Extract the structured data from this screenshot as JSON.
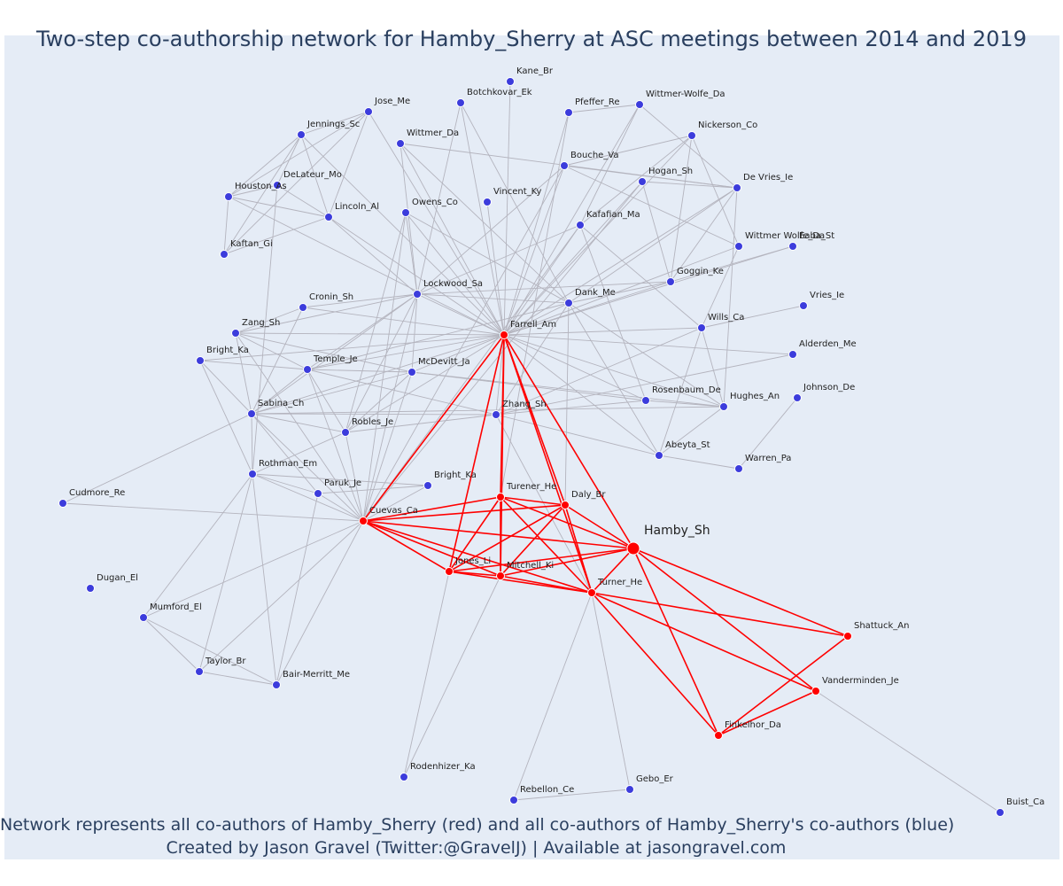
{
  "title": "Two-step co-authorship network for Hamby_Sherry at ASC meetings between 2014 and 2019",
  "caption": {
    "line1": "Network represents all co-authors of Hamby_Sherry (red) and all co-authors of Hamby_Sherry's co-authors (blue)",
    "line2": "Created by Jason Gravel (Twitter:@GravelJ) | Available at jasongravel.com"
  },
  "colors": {
    "first_degree": "#ff0000",
    "second_degree": "#3c3cdc",
    "edge_gray": "#b4b4be",
    "background": "#e5ecf6",
    "text": "#2a3f5f"
  },
  "nodes": [
    {
      "id": "Hamby_Sh",
      "label": "Hamby_Sh",
      "group": "ego"
    },
    {
      "id": "Farrell_Am",
      "label": "Farrell_Am",
      "group": "red"
    },
    {
      "id": "Cuevas_Ca",
      "label": "Cuevas_Ca",
      "group": "red"
    },
    {
      "id": "Turener_He",
      "label": "Turener_He",
      "group": "red"
    },
    {
      "id": "Daly_Br",
      "label": "Daly_Br",
      "group": "red"
    },
    {
      "id": "Jones_Li",
      "label": "Jones_Li",
      "group": "red"
    },
    {
      "id": "Mitchell_Ki",
      "label": "Mitchell_Ki",
      "group": "red"
    },
    {
      "id": "Turner_He",
      "label": "Turner_He",
      "group": "red"
    },
    {
      "id": "Shattuck_An",
      "label": "Shattuck_An",
      "group": "red"
    },
    {
      "id": "Vanderminden_Je",
      "label": "Vanderminden_Je",
      "group": "red"
    },
    {
      "id": "Finkelhor_Da",
      "label": "Finkelhor_Da",
      "group": "red"
    },
    {
      "id": "Kane_Br",
      "label": "Kane_Br",
      "group": "blue"
    },
    {
      "id": "Botchkovar_Ek",
      "label": "Botchkovar_Ek",
      "group": "blue"
    },
    {
      "id": "Pfeffer_Re",
      "label": "Pfeffer_Re",
      "group": "blue"
    },
    {
      "id": "Wittmer-Wolfe_Da",
      "label": "Wittmer-Wolfe_Da",
      "group": "blue"
    },
    {
      "id": "Jose_Me",
      "label": "Jose_Me",
      "group": "blue"
    },
    {
      "id": "Jennings_Sc",
      "label": "Jennings_Sc",
      "group": "blue"
    },
    {
      "id": "Wittmer_Da",
      "label": "Wittmer_Da",
      "group": "blue"
    },
    {
      "id": "Nickerson_Co",
      "label": "Nickerson_Co",
      "group": "blue"
    },
    {
      "id": "Bouche_Va",
      "label": "Bouche_Va",
      "group": "blue"
    },
    {
      "id": "DeLateur_Mo",
      "label": "DeLateur_Mo",
      "group": "blue"
    },
    {
      "id": "Hogan_Sh",
      "label": "Hogan_Sh",
      "group": "blue"
    },
    {
      "id": "Houston_As",
      "label": "Houston_As",
      "group": "blue"
    },
    {
      "id": "De Vries_Ie",
      "label": "De Vries_Ie",
      "group": "blue"
    },
    {
      "id": "Vincent_Ky",
      "label": "Vincent_Ky",
      "group": "blue"
    },
    {
      "id": "Owens_Co",
      "label": "Owens_Co",
      "group": "blue"
    },
    {
      "id": "Lincoln_Al",
      "label": "Lincoln_Al",
      "group": "blue"
    },
    {
      "id": "Kafafian_Ma",
      "label": "Kafafian_Ma",
      "group": "blue"
    },
    {
      "id": "Kaftan_Gi",
      "label": "Kaftan_Gi",
      "group": "blue"
    },
    {
      "id": "Wittmer Wolfe_Da",
      "label": "Wittmer Wolfe_Da",
      "group": "blue"
    },
    {
      "id": "Eaba_St",
      "label": "Eaba_St",
      "group": "blue"
    },
    {
      "id": "Goggin_Ke",
      "label": "Goggin_Ke",
      "group": "blue"
    },
    {
      "id": "Lockwood_Sa",
      "label": "Lockwood_Sa",
      "group": "blue"
    },
    {
      "id": "Cronin_Sh",
      "label": "Cronin_Sh",
      "group": "blue"
    },
    {
      "id": "Dank_Me",
      "label": "Dank_Me",
      "group": "blue"
    },
    {
      "id": "Vries_Ie",
      "label": "Vries_Ie",
      "group": "blue"
    },
    {
      "id": "Zang_Sh",
      "label": "Zang_Sh",
      "group": "blue"
    },
    {
      "id": "Wills_Ca",
      "label": "Wills_Ca",
      "group": "blue"
    },
    {
      "id": "Bright_Ka_top",
      "label": "Bright_Ka",
      "group": "blue"
    },
    {
      "id": "Alderden_Me",
      "label": "Alderden_Me",
      "group": "blue"
    },
    {
      "id": "Temple_Je",
      "label": "Temple_Je",
      "group": "blue"
    },
    {
      "id": "McDevitt_Ja",
      "label": "McDevitt_Ja",
      "group": "blue"
    },
    {
      "id": "Rosenbaum_De",
      "label": "Rosenbaum_De",
      "group": "blue"
    },
    {
      "id": "Johnson_De",
      "label": "Johnson_De",
      "group": "blue"
    },
    {
      "id": "Hughes_An",
      "label": "Hughes_An",
      "group": "blue"
    },
    {
      "id": "Sabina_Ch",
      "label": "Sabina_Ch",
      "group": "blue"
    },
    {
      "id": "Zhang_Sh",
      "label": "Zhang_Sh",
      "group": "blue"
    },
    {
      "id": "Robles_Je",
      "label": "Robles_Je",
      "group": "blue"
    },
    {
      "id": "Abeyta_St",
      "label": "Abeyta_St",
      "group": "blue"
    },
    {
      "id": "Warren_Pa",
      "label": "Warren_Pa",
      "group": "blue"
    },
    {
      "id": "Rothman_Em",
      "label": "Rothman_Em",
      "group": "blue"
    },
    {
      "id": "Bright_Ka_mid",
      "label": "Bright_Ka",
      "group": "blue"
    },
    {
      "id": "Paruk_Je",
      "label": "Paruk_Je",
      "group": "blue"
    },
    {
      "id": "Cudmore_Re",
      "label": "Cudmore_Re",
      "group": "blue"
    },
    {
      "id": "Dugan_El",
      "label": "Dugan_El",
      "group": "blue"
    },
    {
      "id": "Mumford_El",
      "label": "Mumford_El",
      "group": "blue"
    },
    {
      "id": "Taylor_Br",
      "label": "Taylor_Br",
      "group": "blue"
    },
    {
      "id": "Bair-Merritt_Me",
      "label": "Bair-Merritt_Me",
      "group": "blue"
    },
    {
      "id": "Rodenhizer_Ka",
      "label": "Rodenhizer_Ka",
      "group": "blue"
    },
    {
      "id": "Rebellon_Ce",
      "label": "Rebellon_Ce",
      "group": "blue"
    },
    {
      "id": "Gebo_Er",
      "label": "Gebo_Er",
      "group": "blue"
    },
    {
      "id": "Buist_Ca",
      "label": "Buist_Ca",
      "group": "blue"
    }
  ],
  "red_edges": [
    [
      "Hamby_Sh",
      "Farrell_Am"
    ],
    [
      "Hamby_Sh",
      "Cuevas_Ca"
    ],
    [
      "Hamby_Sh",
      "Turener_He"
    ],
    [
      "Hamby_Sh",
      "Daly_Br"
    ],
    [
      "Hamby_Sh",
      "Jones_Li"
    ],
    [
      "Hamby_Sh",
      "Mitchell_Ki"
    ],
    [
      "Hamby_Sh",
      "Turner_He"
    ],
    [
      "Hamby_Sh",
      "Shattuck_An"
    ],
    [
      "Hamby_Sh",
      "Vanderminden_Je"
    ],
    [
      "Hamby_Sh",
      "Finkelhor_Da"
    ],
    [
      "Farrell_Am",
      "Cuevas_Ca"
    ],
    [
      "Farrell_Am",
      "Turener_He"
    ],
    [
      "Farrell_Am",
      "Daly_Br"
    ],
    [
      "Farrell_Am",
      "Jones_Li"
    ],
    [
      "Farrell_Am",
      "Mitchell_Ki"
    ],
    [
      "Farrell_Am",
      "Turner_He"
    ],
    [
      "Cuevas_Ca",
      "Turener_He"
    ],
    [
      "Cuevas_Ca",
      "Daly_Br"
    ],
    [
      "Cuevas_Ca",
      "Jones_Li"
    ],
    [
      "Cuevas_Ca",
      "Mitchell_Ki"
    ],
    [
      "Cuevas_Ca",
      "Turner_He"
    ],
    [
      "Turener_He",
      "Daly_Br"
    ],
    [
      "Turener_He",
      "Jones_Li"
    ],
    [
      "Turener_He",
      "Mitchell_Ki"
    ],
    [
      "Turener_He",
      "Turner_He"
    ],
    [
      "Daly_Br",
      "Jones_Li"
    ],
    [
      "Daly_Br",
      "Mitchell_Ki"
    ],
    [
      "Daly_Br",
      "Turner_He"
    ],
    [
      "Jones_Li",
      "Mitchell_Ki"
    ],
    [
      "Jones_Li",
      "Turner_He"
    ],
    [
      "Mitchell_Ki",
      "Turner_He"
    ],
    [
      "Turner_He",
      "Shattuck_An"
    ],
    [
      "Turner_He",
      "Vanderminden_Je"
    ],
    [
      "Turner_He",
      "Finkelhor_Da"
    ],
    [
      "Shattuck_An",
      "Finkelhor_Da"
    ],
    [
      "Vanderminden_Je",
      "Finkelhor_Da"
    ]
  ],
  "gray_edges": [
    [
      "Farrell_Am",
      "Kane_Br"
    ],
    [
      "Farrell_Am",
      "Botchkovar_Ek"
    ],
    [
      "Farrell_Am",
      "Pfeffer_Re"
    ],
    [
      "Farrell_Am",
      "Wittmer-Wolfe_Da"
    ],
    [
      "Farrell_Am",
      "Jose_Me"
    ],
    [
      "Farrell_Am",
      "Wittmer_Da"
    ],
    [
      "Farrell_Am",
      "Nickerson_Co"
    ],
    [
      "Farrell_Am",
      "Bouche_Va"
    ],
    [
      "Farrell_Am",
      "Hogan_Sh"
    ],
    [
      "Farrell_Am",
      "De Vries_Ie"
    ],
    [
      "Farrell_Am",
      "Vincent_Ky"
    ],
    [
      "Farrell_Am",
      "Owens_Co"
    ],
    [
      "Farrell_Am",
      "Lincoln_Al"
    ],
    [
      "Farrell_Am",
      "Kafafian_Ma"
    ],
    [
      "Farrell_Am",
      "Wittmer Wolfe_Da"
    ],
    [
      "Farrell_Am",
      "Eaba_St"
    ],
    [
      "Farrell_Am",
      "Goggin_Ke"
    ],
    [
      "Farrell_Am",
      "Lockwood_Sa"
    ],
    [
      "Farrell_Am",
      "Cronin_Sh"
    ],
    [
      "Farrell_Am",
      "Dank_Me"
    ],
    [
      "Farrell_Am",
      "Zang_Sh"
    ],
    [
      "Farrell_Am",
      "Wills_Ca"
    ],
    [
      "Farrell_Am",
      "Bright_Ka_top"
    ],
    [
      "Farrell_Am",
      "Alderden_Me"
    ],
    [
      "Farrell_Am",
      "Temple_Je"
    ],
    [
      "Farrell_Am",
      "McDevitt_Ja"
    ],
    [
      "Farrell_Am",
      "Rosenbaum_De"
    ],
    [
      "Farrell_Am",
      "Hughes_An"
    ],
    [
      "Farrell_Am",
      "Sabina_Ch"
    ],
    [
      "Farrell_Am",
      "Zhang_Sh"
    ],
    [
      "Farrell_Am",
      "Robles_Je"
    ],
    [
      "Farrell_Am",
      "Abeyta_St"
    ],
    [
      "Farrell_Am",
      "Houston_As"
    ],
    [
      "Farrell_Am",
      "Jennings_Sc"
    ],
    [
      "Jennings_Sc",
      "Jose_Me"
    ],
    [
      "Jennings_Sc",
      "Houston_As"
    ],
    [
      "Jennings_Sc",
      "Kaftan_Gi"
    ],
    [
      "Jennings_Sc",
      "Lincoln_Al"
    ],
    [
      "Jennings_Sc",
      "DeLateur_Mo"
    ],
    [
      "Houston_As",
      "Kaftan_Gi"
    ],
    [
      "Houston_As",
      "Lincoln_Al"
    ],
    [
      "Houston_As",
      "Jose_Me"
    ],
    [
      "Kaftan_Gi",
      "Lincoln_Al"
    ],
    [
      "Kaftan_Gi",
      "Jose_Me"
    ],
    [
      "Jose_Me",
      "Lincoln_Al"
    ],
    [
      "DeLateur_Mo",
      "Lincoln_Al"
    ],
    [
      "DeLateur_Mo",
      "Houston_As"
    ],
    [
      "DeLateur_Mo",
      "Rothman_Em"
    ],
    [
      "Lincoln_Al",
      "Lockwood_Sa"
    ],
    [
      "Botchkovar_Ek",
      "Lockwood_Sa"
    ],
    [
      "Botchkovar_Ek",
      "Dank_Me"
    ],
    [
      "Wittmer_Da",
      "Lockwood_Sa"
    ],
    [
      "Wittmer_Da",
      "De Vries_Ie"
    ],
    [
      "Wittmer_Da",
      "Dank_Me"
    ],
    [
      "Owens_Co",
      "Lockwood_Sa"
    ],
    [
      "Owens_Co",
      "Cuevas_Ca"
    ],
    [
      "Owens_Co",
      "Robles_Je"
    ],
    [
      "Owens_Co",
      "Dank_Me"
    ],
    [
      "Bouche_Va",
      "Nickerson_Co"
    ],
    [
      "Bouche_Va",
      "De Vries_Ie"
    ],
    [
      "Bouche_Va",
      "Lockwood_Sa"
    ],
    [
      "Bouche_Va",
      "Cuevas_Ca"
    ],
    [
      "Bouche_Va",
      "Wittmer Wolfe_Da"
    ],
    [
      "Pfeffer_Re",
      "Wittmer-Wolfe_Da"
    ],
    [
      "Pfeffer_Re",
      "Turener_He"
    ],
    [
      "Nickerson_Co",
      "Wittmer Wolfe_Da"
    ],
    [
      "Nickerson_Co",
      "Goggin_Ke"
    ],
    [
      "Nickerson_Co",
      "Kafafian_Ma"
    ],
    [
      "Wittmer-Wolfe_Da",
      "De Vries_Ie"
    ],
    [
      "Wittmer-Wolfe_Da",
      "Kafafian_Ma"
    ],
    [
      "Hogan_Sh",
      "Goggin_Ke"
    ],
    [
      "Hogan_Sh",
      "Cuevas_Ca"
    ],
    [
      "Hogan_Sh",
      "De Vries_Ie"
    ],
    [
      "De Vries_Ie",
      "Goggin_Ke"
    ],
    [
      "De Vries_Ie",
      "Hughes_An"
    ],
    [
      "De Vries_Ie",
      "Dank_Me"
    ],
    [
      "Kafafian_Ma",
      "Lockwood_Sa"
    ],
    [
      "Kafafian_Ma",
      "Rosenbaum_De"
    ],
    [
      "Kafafian_Ma",
      "Wills_Ca"
    ],
    [
      "Kafafian_Ma",
      "Cuevas_Ca"
    ],
    [
      "Wittmer Wolfe_Da",
      "Wills_Ca"
    ],
    [
      "Goggin_Ke",
      "Dank_Me"
    ],
    [
      "Goggin_Ke",
      "Lockwood_Sa"
    ],
    [
      "Goggin_Ke",
      "Eaba_St"
    ],
    [
      "Dank_Me",
      "Lockwood_Sa"
    ],
    [
      "Dank_Me",
      "Hughes_An"
    ],
    [
      "Dank_Me",
      "Temple_Je"
    ],
    [
      "Dank_Me",
      "Zhang_Sh"
    ],
    [
      "Dank_Me",
      "Abeyta_St"
    ],
    [
      "Lockwood_Sa",
      "Cronin_Sh"
    ],
    [
      "Lockwood_Sa",
      "Zang_Sh"
    ],
    [
      "Lockwood_Sa",
      "Sabina_Ch"
    ],
    [
      "Lockwood_Sa",
      "Cuevas_Ca"
    ],
    [
      "Lockwood_Sa",
      "Robles_Je"
    ],
    [
      "Lockwood_Sa",
      "Temple_Je"
    ],
    [
      "Lockwood_Sa",
      "McDevitt_Ja"
    ],
    [
      "Cronin_Sh",
      "Zang_Sh"
    ],
    [
      "Cronin_Sh",
      "Sabina_Ch"
    ],
    [
      "Vries_Ie",
      "Wills_Ca"
    ],
    [
      "Wills_Ca",
      "Hughes_An"
    ],
    [
      "Wills_Ca",
      "Abeyta_St"
    ],
    [
      "Wills_Ca",
      "Zhang_Sh"
    ],
    [
      "Zang_Sh",
      "Temple_Je"
    ],
    [
      "Zang_Sh",
      "McDevitt_Ja"
    ],
    [
      "Zang_Sh",
      "Sabina_Ch"
    ],
    [
      "Zang_Sh",
      "Cuevas_Ca"
    ],
    [
      "Bright_Ka_top",
      "Sabina_Ch"
    ],
    [
      "Bright_Ka_top",
      "Rothman_Em"
    ],
    [
      "Bright_Ka_top",
      "Temple_Je"
    ],
    [
      "Temple_Je",
      "McDevitt_Ja"
    ],
    [
      "Temple_Je",
      "Sabina_Ch"
    ],
    [
      "Temple_Je",
      "Robles_Je"
    ],
    [
      "Temple_Je",
      "Cuevas_Ca"
    ],
    [
      "Temple_Je",
      "Zhang_Sh"
    ],
    [
      "McDevitt_Ja",
      "Rosenbaum_De"
    ],
    [
      "McDevitt_Ja",
      "Hughes_An"
    ],
    [
      "McDevitt_Ja",
      "Sabina_Ch"
    ],
    [
      "McDevitt_Ja",
      "Robles_Je"
    ],
    [
      "McDevitt_Ja",
      "Cuevas_Ca"
    ],
    [
      "Rosenbaum_De",
      "Hughes_An"
    ],
    [
      "Rosenbaum_De",
      "Zhang_Sh"
    ],
    [
      "Alderden_Me",
      "Zhang_Sh"
    ],
    [
      "Johnson_De",
      "Warren_Pa"
    ],
    [
      "Hughes_An",
      "Sabina_Ch"
    ],
    [
      "Hughes_An",
      "Abeyta_St"
    ],
    [
      "Sabina_Ch",
      "Robles_Je"
    ],
    [
      "Sabina_Ch",
      "Rothman_Em"
    ],
    [
      "Sabina_Ch",
      "Cudmore_Re"
    ],
    [
      "Sabina_Ch",
      "Paruk_Je"
    ],
    [
      "Sabina_Ch",
      "Cuevas_Ca"
    ],
    [
      "Sabina_Ch",
      "Zhang_Sh"
    ],
    [
      "Zhang_Sh",
      "Robles_Je"
    ],
    [
      "Zhang_Sh",
      "Abeyta_St"
    ],
    [
      "Robles_Je",
      "Cuevas_Ca"
    ],
    [
      "Robles_Je",
      "Rothman_Em"
    ],
    [
      "Abeyta_St",
      "Warren_Pa"
    ],
    [
      "Rothman_Em",
      "Paruk_Je"
    ],
    [
      "Rothman_Em",
      "Cuevas_Ca"
    ],
    [
      "Rothman_Em",
      "Bright_Ka_mid"
    ],
    [
      "Rothman_Em",
      "Mumford_El"
    ],
    [
      "Rothman_Em",
      "Taylor_Br"
    ],
    [
      "Rothman_Em",
      "Bair-Merritt_Me"
    ],
    [
      "Paruk_Je",
      "Cuevas_Ca"
    ],
    [
      "Paruk_Je",
      "Bair-Merritt_Me"
    ],
    [
      "Paruk_Je",
      "Bright_Ka_mid"
    ],
    [
      "Bright_Ka_mid",
      "Cuevas_Ca"
    ],
    [
      "Cudmore_Re",
      "Cuevas_Ca"
    ],
    [
      "Cuevas_Ca",
      "Mumford_El"
    ],
    [
      "Cuevas_Ca",
      "Taylor_Br"
    ],
    [
      "Cuevas_Ca",
      "Bair-Merritt_Me"
    ],
    [
      "Mumford_El",
      "Taylor_Br"
    ],
    [
      "Mumford_El",
      "Bair-Merritt_Me"
    ],
    [
      "Taylor_Br",
      "Bair-Merritt_Me"
    ],
    [
      "Jones_Li",
      "Rodenhizer_Ka"
    ],
    [
      "Mitchell_Ki",
      "Rodenhizer_Ka"
    ],
    [
      "Turner_He",
      "Rebellon_Ce"
    ],
    [
      "Turner_He",
      "Gebo_Er"
    ],
    [
      "Rebellon_Ce",
      "Gebo_Er"
    ],
    [
      "Vanderminden_Je",
      "Buist_Ca"
    ],
    [
      "Daly_Br",
      "Dank_Me"
    ],
    [
      "Turner_He",
      "Zhang_Sh"
    ]
  ]
}
